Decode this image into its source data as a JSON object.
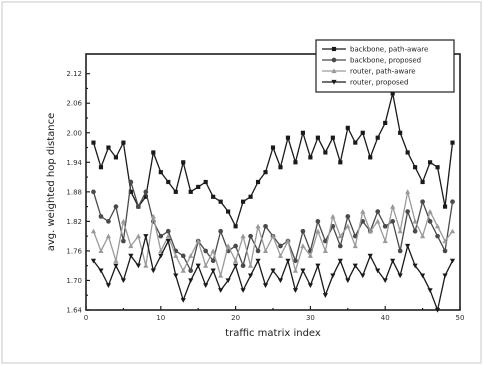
{
  "chart_data": {
    "type": "line",
    "title": "",
    "xlabel": "traffic matrix index",
    "ylabel": "avg. weighted hop distance",
    "xlim": [
      0,
      50
    ],
    "ylim": [
      1.64,
      2.16
    ],
    "x_ticks": [
      0,
      10,
      20,
      30,
      40,
      50
    ],
    "y_ticks": [
      1.64,
      1.7,
      1.76,
      1.82,
      1.88,
      1.94,
      2.0,
      2.06,
      2.12
    ],
    "x_tick_labels": [
      "0",
      "10",
      "20",
      "30",
      "40",
      "50"
    ],
    "y_tick_labels": [
      "1.64",
      "1.70",
      "1.76",
      "1.82",
      "1.88",
      "1.94",
      "2.00",
      "2.06",
      "2.12"
    ],
    "grid": false,
    "legend_position": "top-right",
    "x": [
      1,
      2,
      3,
      4,
      5,
      6,
      7,
      8,
      9,
      10,
      11,
      12,
      13,
      14,
      15,
      16,
      17,
      18,
      19,
      20,
      21,
      22,
      23,
      24,
      25,
      26,
      27,
      28,
      29,
      30,
      31,
      32,
      33,
      34,
      35,
      36,
      37,
      38,
      39,
      40,
      41,
      42,
      43,
      44,
      45,
      46,
      47,
      48,
      49
    ],
    "series": [
      {
        "name": "backbone, path-aware",
        "color": "#1a1a1a",
        "marker": "square",
        "values": [
          1.98,
          1.93,
          1.97,
          1.95,
          1.98,
          1.88,
          1.85,
          1.87,
          1.96,
          1.92,
          1.9,
          1.88,
          1.94,
          1.88,
          1.89,
          1.9,
          1.87,
          1.86,
          1.84,
          1.81,
          1.86,
          1.87,
          1.9,
          1.92,
          1.97,
          1.93,
          1.99,
          1.94,
          2.0,
          1.95,
          1.99,
          1.96,
          1.99,
          1.94,
          2.01,
          1.98,
          2.0,
          1.95,
          1.99,
          2.02,
          2.08,
          2.0,
          1.96,
          1.93,
          1.9,
          1.94,
          1.93,
          1.85,
          1.98
        ]
      },
      {
        "name": "backbone, proposed",
        "color": "#4a4a4a",
        "marker": "circle",
        "values": [
          1.88,
          1.83,
          1.82,
          1.85,
          1.78,
          1.9,
          1.85,
          1.88,
          1.82,
          1.79,
          1.8,
          1.76,
          1.75,
          1.72,
          1.78,
          1.76,
          1.74,
          1.8,
          1.76,
          1.77,
          1.73,
          1.79,
          1.76,
          1.81,
          1.79,
          1.77,
          1.78,
          1.74,
          1.8,
          1.76,
          1.82,
          1.78,
          1.81,
          1.77,
          1.83,
          1.79,
          1.82,
          1.8,
          1.84,
          1.81,
          1.82,
          1.76,
          1.84,
          1.8,
          1.86,
          1.82,
          1.79,
          1.76,
          1.86
        ]
      },
      {
        "name": "router, path-aware",
        "color": "#9a9a9a",
        "marker": "triangle-up",
        "values": [
          1.8,
          1.76,
          1.79,
          1.74,
          1.82,
          1.77,
          1.79,
          1.73,
          1.83,
          1.76,
          1.79,
          1.75,
          1.72,
          1.75,
          1.78,
          1.73,
          1.76,
          1.71,
          1.77,
          1.74,
          1.79,
          1.73,
          1.81,
          1.76,
          1.79,
          1.75,
          1.78,
          1.72,
          1.77,
          1.75,
          1.8,
          1.76,
          1.83,
          1.79,
          1.81,
          1.77,
          1.84,
          1.8,
          1.82,
          1.78,
          1.85,
          1.8,
          1.88,
          1.82,
          1.79,
          1.84,
          1.81,
          1.78,
          1.8
        ]
      },
      {
        "name": "router, proposed",
        "color": "#1a1a1a",
        "marker": "triangle-down",
        "values": [
          1.74,
          1.72,
          1.69,
          1.73,
          1.7,
          1.75,
          1.73,
          1.79,
          1.72,
          1.75,
          1.78,
          1.71,
          1.66,
          1.7,
          1.73,
          1.69,
          1.72,
          1.68,
          1.7,
          1.73,
          1.68,
          1.71,
          1.74,
          1.69,
          1.72,
          1.7,
          1.74,
          1.68,
          1.72,
          1.69,
          1.73,
          1.67,
          1.71,
          1.74,
          1.7,
          1.73,
          1.71,
          1.75,
          1.72,
          1.7,
          1.74,
          1.71,
          1.77,
          1.73,
          1.71,
          1.68,
          1.64,
          1.71,
          1.74
        ]
      }
    ]
  }
}
